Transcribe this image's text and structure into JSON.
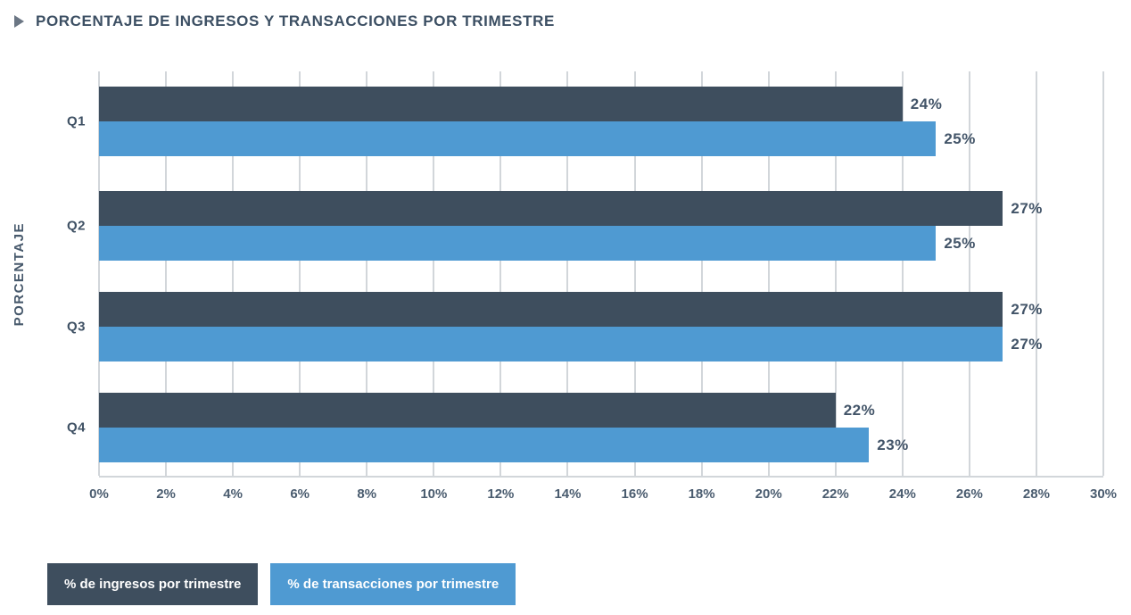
{
  "header": {
    "title": "PORCENTAJE DE INGRESOS Y TRANSACCIONES POR TRIMESTRE",
    "icon": "play-triangle-icon",
    "icon_color": "#6b7684"
  },
  "chart_data": {
    "type": "bar",
    "orientation": "horizontal",
    "title": "PORCENTAJE DE INGRESOS Y TRANSACCIONES POR TRIMESTRE",
    "categories": [
      "Q1",
      "Q2",
      "Q3",
      "Q4"
    ],
    "series": [
      {
        "name": "% de ingresos por trimestre",
        "color": "#3e4e5e",
        "values": [
          24,
          27,
          27,
          22
        ]
      },
      {
        "name": "% de transacciones por trimestre",
        "color": "#4f9ad2",
        "values": [
          25,
          25,
          27,
          23
        ]
      }
    ],
    "value_label_suffix": "%",
    "xlabel": "",
    "ylabel": "PORCENTAJE",
    "xlim": [
      0,
      30
    ],
    "x_ticks": [
      "0%",
      "2%",
      "4%",
      "6%",
      "8%",
      "10%",
      "12%",
      "14%",
      "16%",
      "18%",
      "20%",
      "22%",
      "24%",
      "26%",
      "28%",
      "30%"
    ],
    "grid": "vertical",
    "gridline_color": "#d2d6da",
    "legend_position": "bottom-left"
  }
}
